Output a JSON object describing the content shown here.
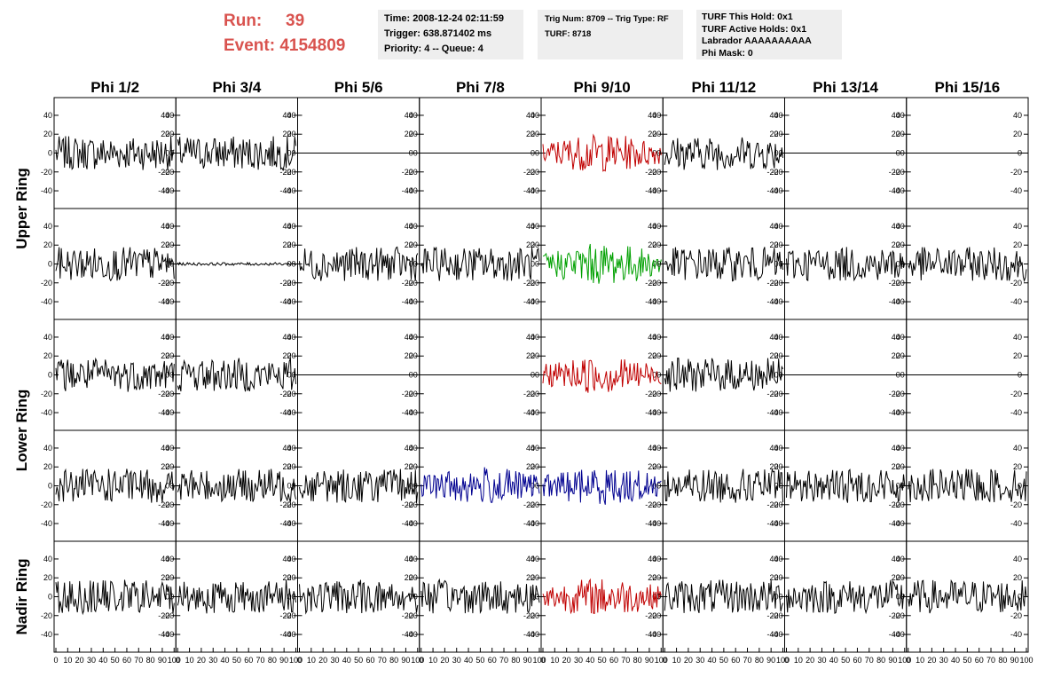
{
  "header": {
    "run_label": "Run:",
    "run_value": "39",
    "event_label": "Event:",
    "event_value": "4154809",
    "info_boxes": [
      [
        "Time: 2008-12-24 02:11:59",
        "Trigger: 638.871402 ms",
        "Priority: 4 -- Queue: 4"
      ],
      [
        "Trig Num: 8709 -- Trig Type: RF",
        "",
        "TURF: 8718"
      ],
      [
        "TURF This Hold: 0x1",
        "TURF Active Holds: 0x1",
        "Labrador AAAAAAAAAA",
        "Phi Mask: 0"
      ]
    ]
  },
  "colors": {
    "header_red": "#d9534f",
    "trace_black": "#000000",
    "trace_red": "#c00000",
    "trace_green": "#00a000",
    "trace_blue": "#000090",
    "info_bg": "#eeeeee"
  },
  "chart_data": {
    "type": "line",
    "columns": [
      "Phi 1/2",
      "Phi 3/4",
      "Phi 5/6",
      "Phi 7/8",
      "Phi 9/10",
      "Phi 11/12",
      "Phi 13/14",
      "Phi 15/16"
    ],
    "rows": [
      "Upper Ring",
      "Upper Ring",
      "Lower Ring",
      "Lower Ring",
      "Nadir Ring"
    ],
    "row_labels": [
      "Upper Ring",
      "Lower Ring",
      "Nadir Ring"
    ],
    "ylim": [
      -55,
      55
    ],
    "yticks": [
      -40,
      -20,
      0,
      20,
      40
    ],
    "xlim": [
      0,
      100
    ],
    "xticks": [
      0,
      10,
      20,
      30,
      40,
      50,
      60,
      70,
      80,
      90,
      100
    ],
    "panels": [
      [
        "normal",
        "normal",
        "flat",
        "flat",
        "red",
        "normal",
        "flat",
        "flat"
      ],
      [
        "normal",
        "small",
        "normal",
        "normal",
        "green",
        "normal",
        "normal",
        "normal"
      ],
      [
        "normal",
        "normal",
        "flat",
        "flat",
        "red",
        "normal",
        "flat",
        "flat"
      ],
      [
        "normal",
        "normal",
        "normal",
        "blue",
        "blue",
        "normal",
        "normal",
        "normal"
      ],
      [
        "normal",
        "normal",
        "normal",
        "normal",
        "red",
        "normal",
        "normal",
        "normal"
      ]
    ]
  }
}
